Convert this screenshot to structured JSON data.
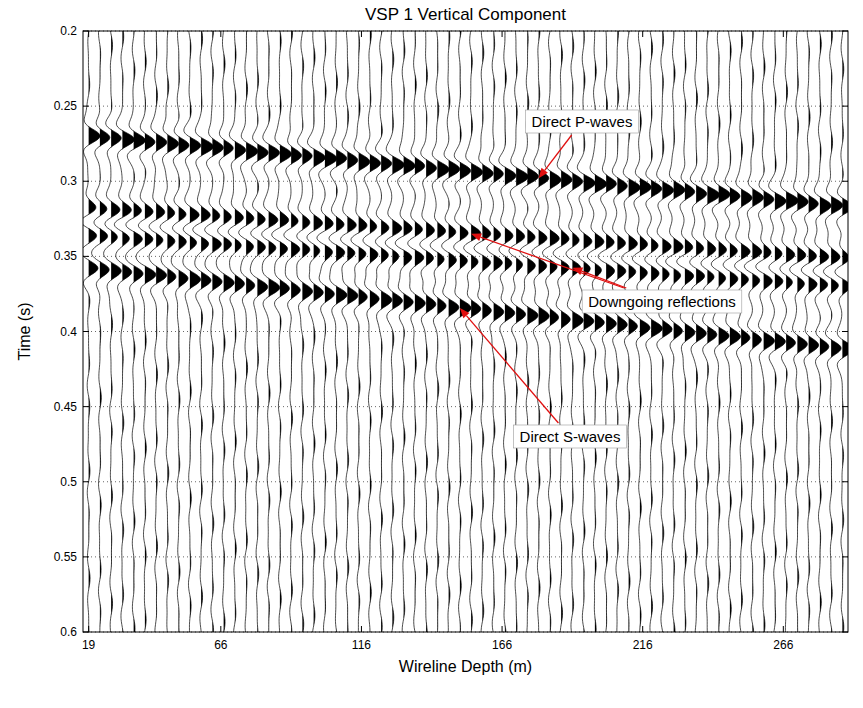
{
  "chart_data": {
    "type": "wiggle",
    "title": "VSP 1 Vertical Component",
    "x_label": "Wireline Depth (m)",
    "y_label": "Time (s)",
    "x": [
      19,
      23,
      27,
      31,
      35,
      39,
      43,
      47,
      51,
      55,
      59,
      63,
      67,
      71,
      75,
      79,
      83,
      87,
      91,
      95,
      99,
      103,
      107,
      111,
      115,
      119,
      123,
      127,
      131,
      135,
      139,
      143,
      147,
      151,
      155,
      159,
      163,
      167,
      171,
      175,
      179,
      183,
      187,
      191,
      195,
      199,
      203,
      207,
      211,
      215,
      219,
      223,
      227,
      231,
      235,
      239,
      243,
      247,
      251,
      255,
      259,
      263,
      267,
      271,
      275,
      279,
      283,
      287
    ],
    "series": [
      {
        "color": "#000000",
        "values": [
          0.27,
          0.271,
          0.271,
          0.272,
          0.273,
          0.274,
          0.274,
          0.275,
          0.276,
          0.276,
          0.277,
          0.278,
          0.278,
          0.279,
          0.28,
          0.281,
          0.281,
          0.282,
          0.283,
          0.283,
          0.284,
          0.285,
          0.285,
          0.286,
          0.287,
          0.288,
          0.288,
          0.289,
          0.29,
          0.29,
          0.291,
          0.292,
          0.292,
          0.293,
          0.294,
          0.295,
          0.295,
          0.296,
          0.297,
          0.297,
          0.298,
          0.299,
          0.299,
          0.3,
          0.301,
          0.302,
          0.302,
          0.303,
          0.304,
          0.304,
          0.305,
          0.306,
          0.306,
          0.307,
          0.308,
          0.309,
          0.309,
          0.31,
          0.311,
          0.311,
          0.312,
          0.313,
          0.313,
          0.314,
          0.315,
          0.316,
          0.316,
          0.317
        ]
      },
      {
        "color": "#000000",
        "values": [
          0.318,
          0.3185,
          0.319,
          0.3195,
          0.32,
          0.3205,
          0.321,
          0.3215,
          0.322,
          0.3225,
          0.323,
          0.3235,
          0.324,
          0.3245,
          0.325,
          0.3255,
          0.326,
          0.3265,
          0.327,
          0.3275,
          0.328,
          0.3285,
          0.329,
          0.3295,
          0.33,
          0.3305,
          0.331,
          0.3315,
          0.332,
          0.3325,
          0.333,
          0.3335,
          0.334,
          0.3345,
          0.335,
          0.3355,
          0.336,
          0.3365,
          0.337,
          0.3375,
          0.338,
          0.3385,
          0.339,
          0.3395,
          0.34,
          0.3405,
          0.341,
          0.3415,
          0.342,
          0.3425,
          0.343,
          0.3435,
          0.344,
          0.3445,
          0.345,
          0.3455,
          0.346,
          0.3465,
          0.347,
          0.3475,
          0.348,
          0.3485,
          0.349,
          0.3495,
          0.35,
          0.3505,
          0.351,
          0.3515
        ]
      },
      {
        "color": "#000000",
        "values": [
          0.336,
          0.3365,
          0.337,
          0.3375,
          0.338,
          0.3385,
          0.339,
          0.3395,
          0.34,
          0.3405,
          0.341,
          0.3415,
          0.342,
          0.3425,
          0.343,
          0.3435,
          0.344,
          0.3445,
          0.345,
          0.3455,
          0.346,
          0.3465,
          0.347,
          0.3475,
          0.348,
          0.3485,
          0.349,
          0.3495,
          0.35,
          0.3505,
          0.351,
          0.3515,
          0.352,
          0.3525,
          0.353,
          0.3535,
          0.354,
          0.3545,
          0.355,
          0.3555,
          0.356,
          0.3565,
          0.357,
          0.3575,
          0.358,
          0.3585,
          0.359,
          0.3595,
          0.36,
          0.3605,
          0.361,
          0.3615,
          0.362,
          0.3625,
          0.363,
          0.3635,
          0.364,
          0.3645,
          0.365,
          0.3655,
          0.366,
          0.3665,
          0.367,
          0.3675,
          0.368,
          0.3685,
          0.369,
          0.3695
        ]
      },
      {
        "color": "#000000",
        "values": [
          0.358,
          0.3588,
          0.3596,
          0.3604,
          0.3612,
          0.362,
          0.3628,
          0.3636,
          0.3644,
          0.3652,
          0.366,
          0.3668,
          0.3676,
          0.3684,
          0.3692,
          0.37,
          0.3708,
          0.3716,
          0.3724,
          0.3732,
          0.374,
          0.3748,
          0.3756,
          0.3764,
          0.3772,
          0.378,
          0.3788,
          0.3796,
          0.3804,
          0.3812,
          0.382,
          0.3828,
          0.3836,
          0.3844,
          0.3852,
          0.386,
          0.3868,
          0.3876,
          0.3884,
          0.3892,
          0.39,
          0.3908,
          0.3916,
          0.3924,
          0.3932,
          0.394,
          0.3948,
          0.3956,
          0.3964,
          0.3972,
          0.398,
          0.3988,
          0.3996,
          0.4004,
          0.4012,
          0.402,
          0.4028,
          0.4036,
          0.4044,
          0.4052,
          0.406,
          0.4068,
          0.4076,
          0.4084,
          0.4092,
          0.41,
          0.4108,
          0.4116
        ]
      }
    ],
    "annotations": [
      {
        "text": "Direct P-waves",
        "x": [
          179
        ],
        "y": [
          0.298
        ]
      },
      {
        "text": "Downgoing reflections",
        "x": [
          155,
          191
        ],
        "y": [
          0.335,
          0.3575
        ]
      },
      {
        "text": "Direct S-waves",
        "x": [
          151
        ],
        "y": [
          0.3844
        ]
      }
    ],
    "xlim": [
      17,
      289
    ],
    "ylim": [
      0.2,
      0.6
    ],
    "xticks": [
      19,
      66,
      116,
      166,
      216,
      266
    ],
    "yticks": [
      0.2,
      0.25,
      0.3,
      0.35,
      0.4,
      0.45,
      0.5,
      0.55,
      0.6
    ],
    "grid": true
  }
}
